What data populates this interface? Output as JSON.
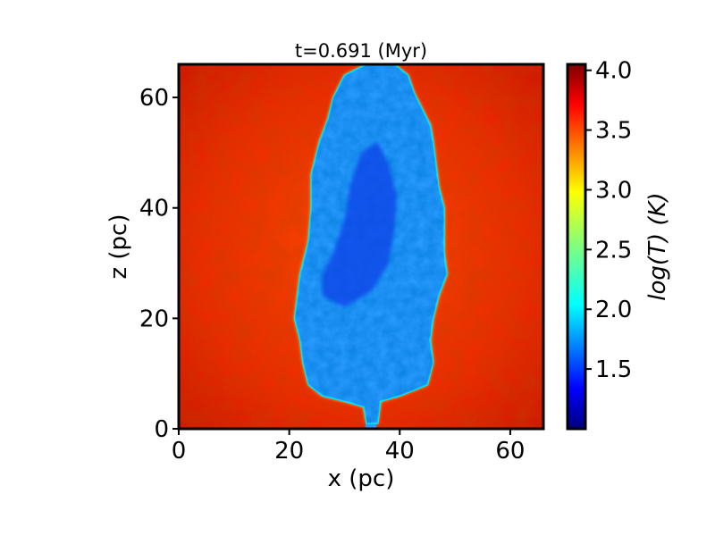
{
  "chart_data": {
    "type": "heatmap",
    "title": "t=0.691 (Myr)",
    "xlabel": "x (pc)",
    "ylabel": "z (pc)",
    "xlim": [
      0,
      66
    ],
    "ylim": [
      0,
      66
    ],
    "x_ticks": [
      0,
      20,
      40,
      60
    ],
    "y_ticks": [
      0,
      20,
      40,
      60
    ],
    "x_tick_labels": [
      "0",
      "20",
      "40",
      "60"
    ],
    "y_tick_labels": [
      "0",
      "20",
      "40",
      "60"
    ],
    "colorbar": {
      "label": "log(T) (K)",
      "range": [
        1.0,
        4.05
      ],
      "ticks": [
        1.5,
        2.0,
        2.5,
        3.0,
        3.5,
        4.0
      ],
      "tick_labels": [
        "1.5",
        "2.0",
        "2.5",
        "3.0",
        "3.5",
        "4.0"
      ],
      "colormap": "jet"
    },
    "field": {
      "description_values": {
        "background_logT": 3.8,
        "cloud_logT": 2.0,
        "cloud_core_logT": 1.3
      },
      "cloud_outline_pc": [
        [
          35,
          1
        ],
        [
          36,
          1
        ],
        [
          36.5,
          5
        ],
        [
          40,
          6
        ],
        [
          45,
          8
        ],
        [
          46,
          12
        ],
        [
          45.5,
          16
        ],
        [
          46,
          20
        ],
        [
          47,
          24
        ],
        [
          48.5,
          28
        ],
        [
          48,
          32
        ],
        [
          48,
          36
        ],
        [
          48,
          40
        ],
        [
          47,
          44
        ],
        [
          46.5,
          48
        ],
        [
          46,
          52
        ],
        [
          45.5,
          55
        ],
        [
          44,
          58
        ],
        [
          42.5,
          61
        ],
        [
          41.5,
          64
        ],
        [
          39,
          66
        ],
        [
          34,
          66
        ],
        [
          30,
          64
        ],
        [
          28,
          60
        ],
        [
          27,
          56
        ],
        [
          25.5,
          52
        ],
        [
          24,
          46
        ],
        [
          24,
          40
        ],
        [
          23.5,
          34
        ],
        [
          22,
          28
        ],
        [
          21.5,
          24
        ],
        [
          21,
          20
        ],
        [
          22,
          16
        ],
        [
          22.5,
          12
        ],
        [
          23.5,
          8
        ],
        [
          26,
          6
        ],
        [
          30,
          5
        ],
        [
          33.5,
          4
        ],
        [
          34,
          1
        ]
      ],
      "core_outline_pc": [
        [
          26,
          24
        ],
        [
          30,
          22
        ],
        [
          35,
          25
        ],
        [
          38,
          30
        ],
        [
          39,
          36
        ],
        [
          39.5,
          42
        ],
        [
          38,
          48
        ],
        [
          36,
          52
        ],
        [
          33,
          50
        ],
        [
          31,
          44
        ],
        [
          30,
          38
        ],
        [
          28,
          32
        ],
        [
          26,
          28
        ]
      ],
      "stream_pc": [
        [
          33.8,
          0
        ],
        [
          35.8,
          0
        ],
        [
          35.8,
          4
        ],
        [
          33.8,
          4
        ]
      ]
    }
  }
}
